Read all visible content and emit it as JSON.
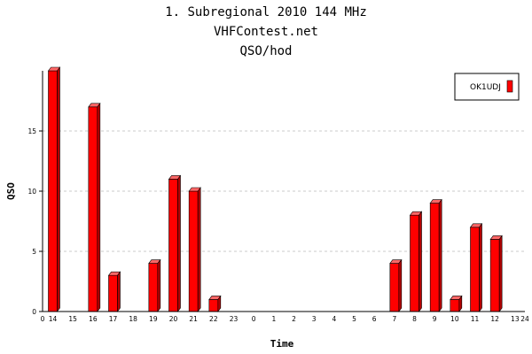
{
  "header": {
    "line1": "1. Subregional 2010 144 MHz",
    "line2": "VHFContest.net",
    "line3": "QSO/hod"
  },
  "chart_data": {
    "type": "bar",
    "title": "1. Subregional 2010 144 MHz",
    "xlabel": "Time",
    "ylabel": "QSO",
    "ylim": [
      0,
      20
    ],
    "yticks": [
      0,
      5,
      10,
      15
    ],
    "grid": true,
    "legend_position": "top-right",
    "categories": [
      "14",
      "15",
      "16",
      "17",
      "18",
      "19",
      "20",
      "21",
      "22",
      "23",
      "0",
      "1",
      "2",
      "3",
      "4",
      "5",
      "6",
      "7",
      "8",
      "9",
      "10",
      "11",
      "12",
      "13"
    ],
    "axis_end_labels": {
      "start": "0",
      "end": "24"
    },
    "series": [
      {
        "name": "OK1UDJ",
        "color": "#ff0000",
        "values": [
          20,
          0,
          17,
          3,
          0,
          4,
          11,
          10,
          1,
          0,
          0,
          0,
          0,
          0,
          0,
          0,
          0,
          4,
          8,
          9,
          1,
          7,
          6,
          0
        ]
      }
    ]
  }
}
